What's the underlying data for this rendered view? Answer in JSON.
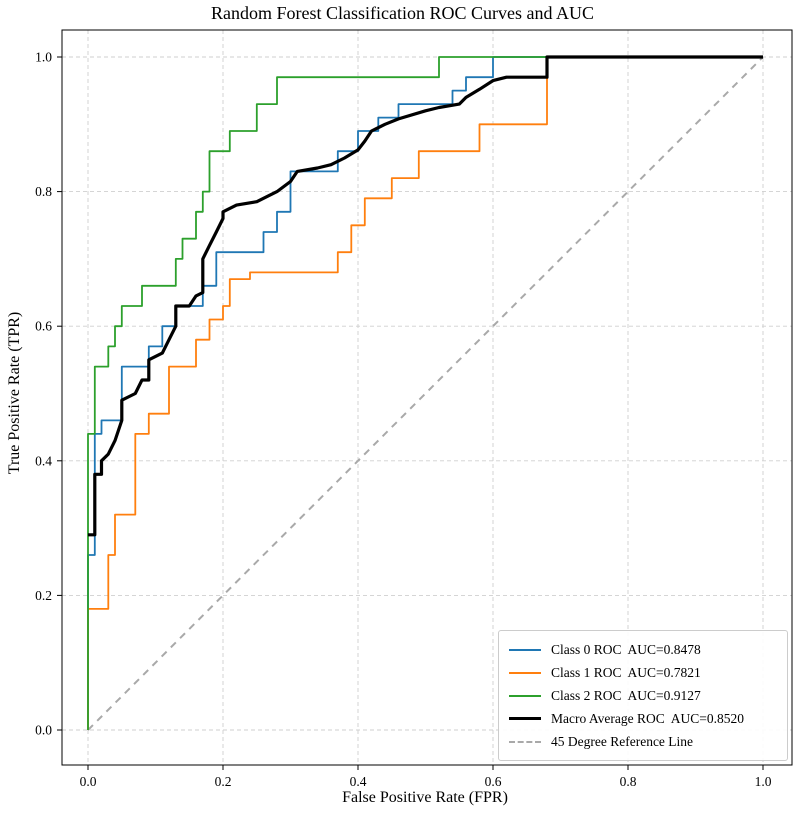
{
  "chart_data": {
    "type": "line",
    "title": "Random Forest Classification ROC Curves and AUC",
    "xlabel": "False Positive Rate (FPR)",
    "ylabel": "True Positive Rate (TPR)",
    "xlim": [
      -0.04,
      1.04
    ],
    "ylim": [
      -0.04,
      1.04
    ],
    "grid": true,
    "grid_style": "dashed",
    "grid_color": "#cfcfcf",
    "legend_position": "lower right",
    "xticks": {
      "values": [
        0.0,
        0.2,
        0.4,
        0.6,
        0.8,
        1.0
      ],
      "labels": [
        "0.0",
        "0.2",
        "0.4",
        "0.6",
        "0.8",
        "1.0"
      ]
    },
    "yticks": {
      "values": [
        0.0,
        0.2,
        0.4,
        0.6,
        0.8,
        1.0
      ],
      "labels": [
        "0.0",
        "0.2",
        "0.4",
        "0.6",
        "0.8",
        "1.0"
      ]
    },
    "series": [
      {
        "name": "Class 0 ROC",
        "legend": "Class 0 ROC  AUC=0.8478",
        "auc": 0.8478,
        "color": "#1f77b4",
        "width": 1.8,
        "dash": null,
        "points": [
          [
            0,
            0
          ],
          [
            0,
            0.26
          ],
          [
            0.01,
            0.26
          ],
          [
            0.01,
            0.44
          ],
          [
            0.02,
            0.44
          ],
          [
            0.02,
            0.46
          ],
          [
            0.05,
            0.46
          ],
          [
            0.05,
            0.54
          ],
          [
            0.09,
            0.54
          ],
          [
            0.09,
            0.57
          ],
          [
            0.11,
            0.57
          ],
          [
            0.11,
            0.6
          ],
          [
            0.13,
            0.6
          ],
          [
            0.13,
            0.63
          ],
          [
            0.17,
            0.63
          ],
          [
            0.17,
            0.66
          ],
          [
            0.19,
            0.66
          ],
          [
            0.19,
            0.71
          ],
          [
            0.26,
            0.71
          ],
          [
            0.26,
            0.74
          ],
          [
            0.28,
            0.74
          ],
          [
            0.28,
            0.77
          ],
          [
            0.3,
            0.77
          ],
          [
            0.3,
            0.83
          ],
          [
            0.37,
            0.83
          ],
          [
            0.37,
            0.86
          ],
          [
            0.4,
            0.86
          ],
          [
            0.4,
            0.89
          ],
          [
            0.43,
            0.89
          ],
          [
            0.43,
            0.91
          ],
          [
            0.46,
            0.91
          ],
          [
            0.46,
            0.93
          ],
          [
            0.54,
            0.93
          ],
          [
            0.54,
            0.95
          ],
          [
            0.56,
            0.95
          ],
          [
            0.56,
            0.97
          ],
          [
            0.6,
            0.97
          ],
          [
            0.6,
            1.0
          ],
          [
            1.0,
            1.0
          ]
        ]
      },
      {
        "name": "Class 1 ROC",
        "legend": "Class 1 ROC  AUC=0.7821",
        "auc": 0.7821,
        "color": "#ff7f0e",
        "width": 1.8,
        "dash": null,
        "points": [
          [
            0,
            0
          ],
          [
            0,
            0.18
          ],
          [
            0.03,
            0.18
          ],
          [
            0.03,
            0.26
          ],
          [
            0.04,
            0.26
          ],
          [
            0.04,
            0.32
          ],
          [
            0.07,
            0.32
          ],
          [
            0.07,
            0.44
          ],
          [
            0.09,
            0.44
          ],
          [
            0.09,
            0.47
          ],
          [
            0.12,
            0.47
          ],
          [
            0.12,
            0.54
          ],
          [
            0.16,
            0.54
          ],
          [
            0.16,
            0.58
          ],
          [
            0.18,
            0.58
          ],
          [
            0.18,
            0.61
          ],
          [
            0.2,
            0.61
          ],
          [
            0.2,
            0.63
          ],
          [
            0.21,
            0.63
          ],
          [
            0.21,
            0.67
          ],
          [
            0.24,
            0.67
          ],
          [
            0.24,
            0.68
          ],
          [
            0.37,
            0.68
          ],
          [
            0.37,
            0.71
          ],
          [
            0.39,
            0.71
          ],
          [
            0.39,
            0.75
          ],
          [
            0.41,
            0.75
          ],
          [
            0.41,
            0.79
          ],
          [
            0.45,
            0.79
          ],
          [
            0.45,
            0.82
          ],
          [
            0.49,
            0.82
          ],
          [
            0.49,
            0.86
          ],
          [
            0.58,
            0.86
          ],
          [
            0.58,
            0.9
          ],
          [
            0.68,
            0.9
          ],
          [
            0.68,
            1.0
          ],
          [
            1.0,
            1.0
          ]
        ]
      },
      {
        "name": "Class 2 ROC",
        "legend": "Class 2 ROC  AUC=0.9127",
        "auc": 0.9127,
        "color": "#2ca02c",
        "width": 1.8,
        "dash": null,
        "points": [
          [
            0,
            0
          ],
          [
            0,
            0.44
          ],
          [
            0.01,
            0.44
          ],
          [
            0.01,
            0.54
          ],
          [
            0.03,
            0.54
          ],
          [
            0.03,
            0.57
          ],
          [
            0.04,
            0.57
          ],
          [
            0.04,
            0.6
          ],
          [
            0.05,
            0.6
          ],
          [
            0.05,
            0.63
          ],
          [
            0.08,
            0.63
          ],
          [
            0.08,
            0.66
          ],
          [
            0.13,
            0.66
          ],
          [
            0.13,
            0.7
          ],
          [
            0.14,
            0.7
          ],
          [
            0.14,
            0.73
          ],
          [
            0.16,
            0.73
          ],
          [
            0.16,
            0.77
          ],
          [
            0.17,
            0.77
          ],
          [
            0.17,
            0.8
          ],
          [
            0.18,
            0.8
          ],
          [
            0.18,
            0.86
          ],
          [
            0.21,
            0.86
          ],
          [
            0.21,
            0.89
          ],
          [
            0.25,
            0.89
          ],
          [
            0.25,
            0.93
          ],
          [
            0.28,
            0.93
          ],
          [
            0.28,
            0.97
          ],
          [
            0.52,
            0.97
          ],
          [
            0.52,
            1.0
          ],
          [
            1.0,
            1.0
          ]
        ]
      },
      {
        "name": "Macro Average ROC",
        "legend": "Macro Average ROC  AUC=0.8520",
        "auc": 0.852,
        "color": "#000000",
        "width": 3.2,
        "dash": null,
        "points": [
          [
            0,
            0.29
          ],
          [
            0.01,
            0.29
          ],
          [
            0.01,
            0.38
          ],
          [
            0.02,
            0.38
          ],
          [
            0.02,
            0.4
          ],
          [
            0.03,
            0.41
          ],
          [
            0.04,
            0.43
          ],
          [
            0.05,
            0.46
          ],
          [
            0.05,
            0.49
          ],
          [
            0.07,
            0.5
          ],
          [
            0.08,
            0.52
          ],
          [
            0.09,
            0.52
          ],
          [
            0.09,
            0.55
          ],
          [
            0.11,
            0.56
          ],
          [
            0.12,
            0.58
          ],
          [
            0.13,
            0.6
          ],
          [
            0.13,
            0.63
          ],
          [
            0.15,
            0.63
          ],
          [
            0.16,
            0.645
          ],
          [
            0.17,
            0.65
          ],
          [
            0.17,
            0.7
          ],
          [
            0.18,
            0.72
          ],
          [
            0.19,
            0.74
          ],
          [
            0.2,
            0.76
          ],
          [
            0.2,
            0.77
          ],
          [
            0.22,
            0.78
          ],
          [
            0.25,
            0.785
          ],
          [
            0.26,
            0.79
          ],
          [
            0.28,
            0.8
          ],
          [
            0.3,
            0.815
          ],
          [
            0.31,
            0.83
          ],
          [
            0.34,
            0.835
          ],
          [
            0.36,
            0.84
          ],
          [
            0.38,
            0.85
          ],
          [
            0.4,
            0.862
          ],
          [
            0.41,
            0.875
          ],
          [
            0.42,
            0.89
          ],
          [
            0.44,
            0.9
          ],
          [
            0.46,
            0.908
          ],
          [
            0.5,
            0.92
          ],
          [
            0.52,
            0.925
          ],
          [
            0.55,
            0.93
          ],
          [
            0.56,
            0.94
          ],
          [
            0.58,
            0.952
          ],
          [
            0.6,
            0.965
          ],
          [
            0.62,
            0.97
          ],
          [
            0.68,
            0.97
          ],
          [
            0.68,
            1.0
          ],
          [
            1.0,
            1.0
          ]
        ]
      },
      {
        "name": "45 Degree Reference Line",
        "legend": "45 Degree Reference Line",
        "color": "#a9a9a9",
        "width": 2,
        "dash": "7 6",
        "points": [
          [
            0,
            0
          ],
          [
            1,
            1
          ]
        ]
      }
    ]
  }
}
